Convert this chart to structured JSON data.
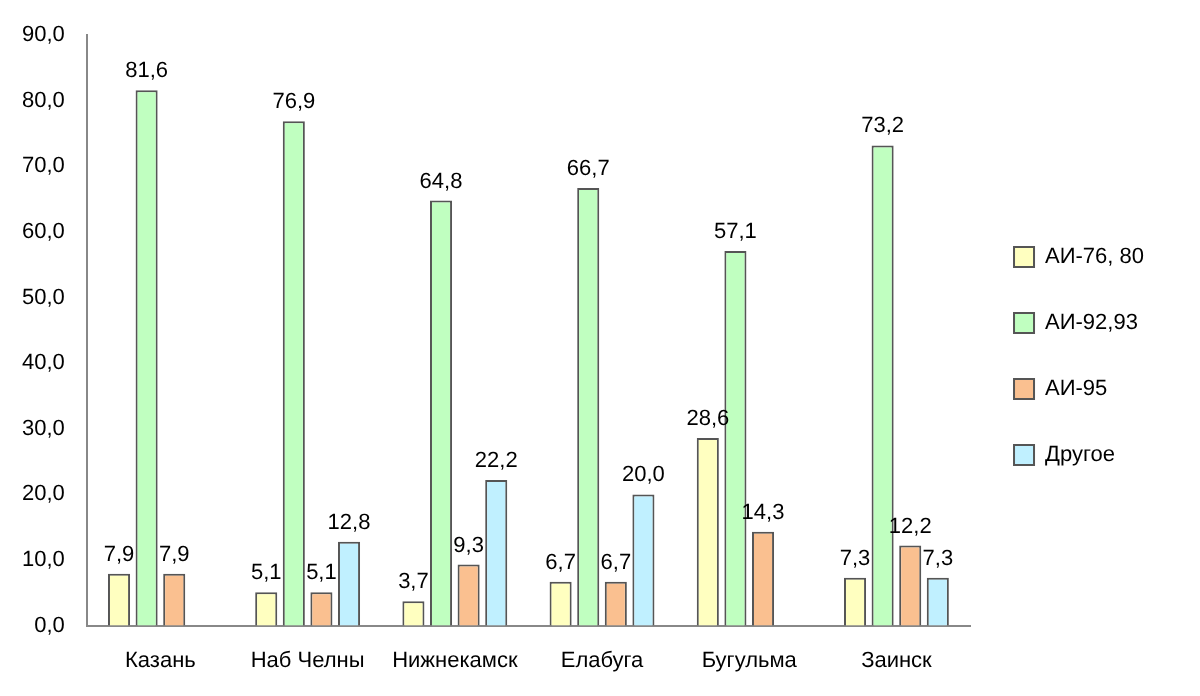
{
  "chart_data": {
    "type": "bar",
    "categories": [
      "Казань",
      "Наб Челны",
      "Нижнекамск",
      "Елабуга",
      "Бугульма",
      "Заинск"
    ],
    "series": [
      {
        "name": "АИ-76, 80",
        "color": "#ffffc0",
        "values": [
          7.9,
          5.1,
          3.7,
          6.7,
          28.6,
          7.3
        ],
        "value_labels": [
          "7,9",
          "5,1",
          "3,7",
          "6,7",
          "28,6",
          "7,3"
        ]
      },
      {
        "name": "АИ-92,93",
        "color": "#c0ffc0",
        "values": [
          81.6,
          76.9,
          64.8,
          66.7,
          57.1,
          73.2
        ],
        "value_labels": [
          "81,6",
          "76,9",
          "64,8",
          "66,7",
          "57,1",
          "73,2"
        ]
      },
      {
        "name": "АИ-95",
        "color": "#fac090",
        "values": [
          7.9,
          5.1,
          9.3,
          6.7,
          14.3,
          12.2
        ],
        "value_labels": [
          "7,9",
          "5,1",
          "9,3",
          "6,7",
          "14,3",
          "12,2"
        ]
      },
      {
        "name": "Другое",
        "color": "#c0f0ff",
        "values": [
          null,
          12.8,
          22.2,
          20.0,
          null,
          7.3
        ],
        "value_labels": [
          null,
          "12,8",
          "22,2",
          "20,0",
          null,
          "7,3"
        ]
      }
    ],
    "ylim": [
      0,
      90
    ],
    "yticks": [
      {
        "value": 0,
        "label": "0,0"
      },
      {
        "value": 10,
        "label": "10,0"
      },
      {
        "value": 20,
        "label": "20,0"
      },
      {
        "value": 30,
        "label": "30,0"
      },
      {
        "value": 40,
        "label": "40,0"
      },
      {
        "value": 50,
        "label": "50,0"
      },
      {
        "value": 60,
        "label": "60,0"
      },
      {
        "value": 70,
        "label": "70,0"
      },
      {
        "value": 80,
        "label": "80,0"
      },
      {
        "value": 90,
        "label": "90,0"
      }
    ],
    "grid": false,
    "legend": "right"
  }
}
